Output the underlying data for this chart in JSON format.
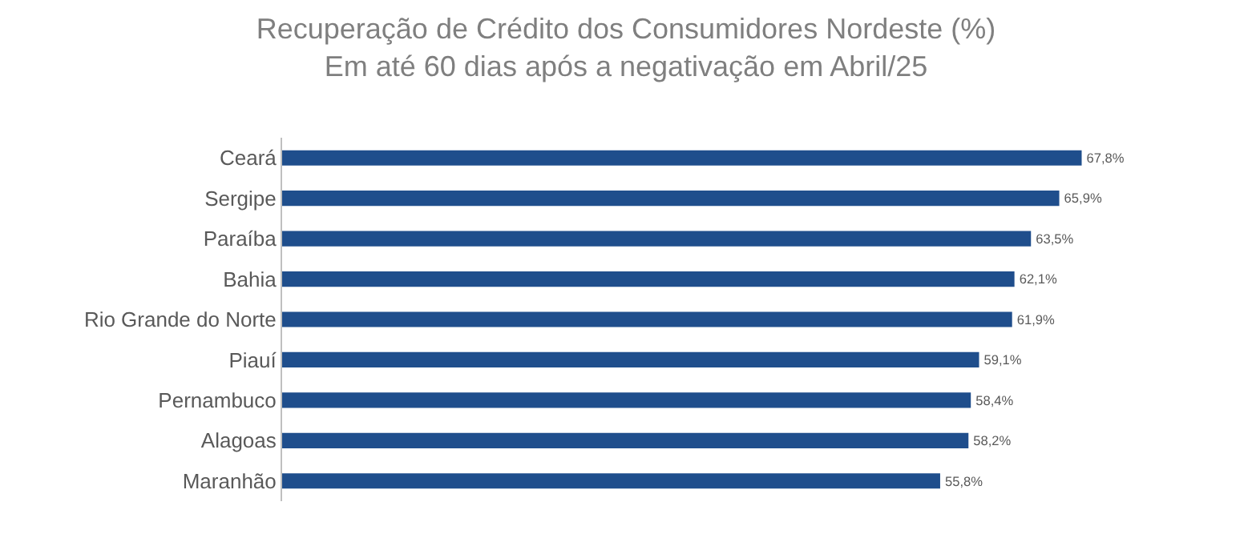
{
  "chart_data": {
    "type": "bar",
    "orientation": "horizontal",
    "title": "Recuperação de Crédito dos Consumidores Nordeste (%)",
    "subtitle": "Em até 60 dias após a negativação em Abril/25",
    "categories": [
      "Ceará",
      "Sergipe",
      "Paraíba",
      "Bahia",
      "Rio Grande do Norte",
      "Piauí",
      "Pernambuco",
      "Alagoas",
      "Maranhão"
    ],
    "values": [
      67.8,
      65.9,
      63.5,
      62.1,
      61.9,
      59.1,
      58.4,
      58.2,
      55.8
    ],
    "value_labels": [
      "67,8%",
      "65,9%",
      "63,5%",
      "62,1%",
      "61,9%",
      "59,1%",
      "58,4%",
      "58,2%",
      "55,8%"
    ],
    "color": "#1f4e8c",
    "tick_labels": "y"
  }
}
